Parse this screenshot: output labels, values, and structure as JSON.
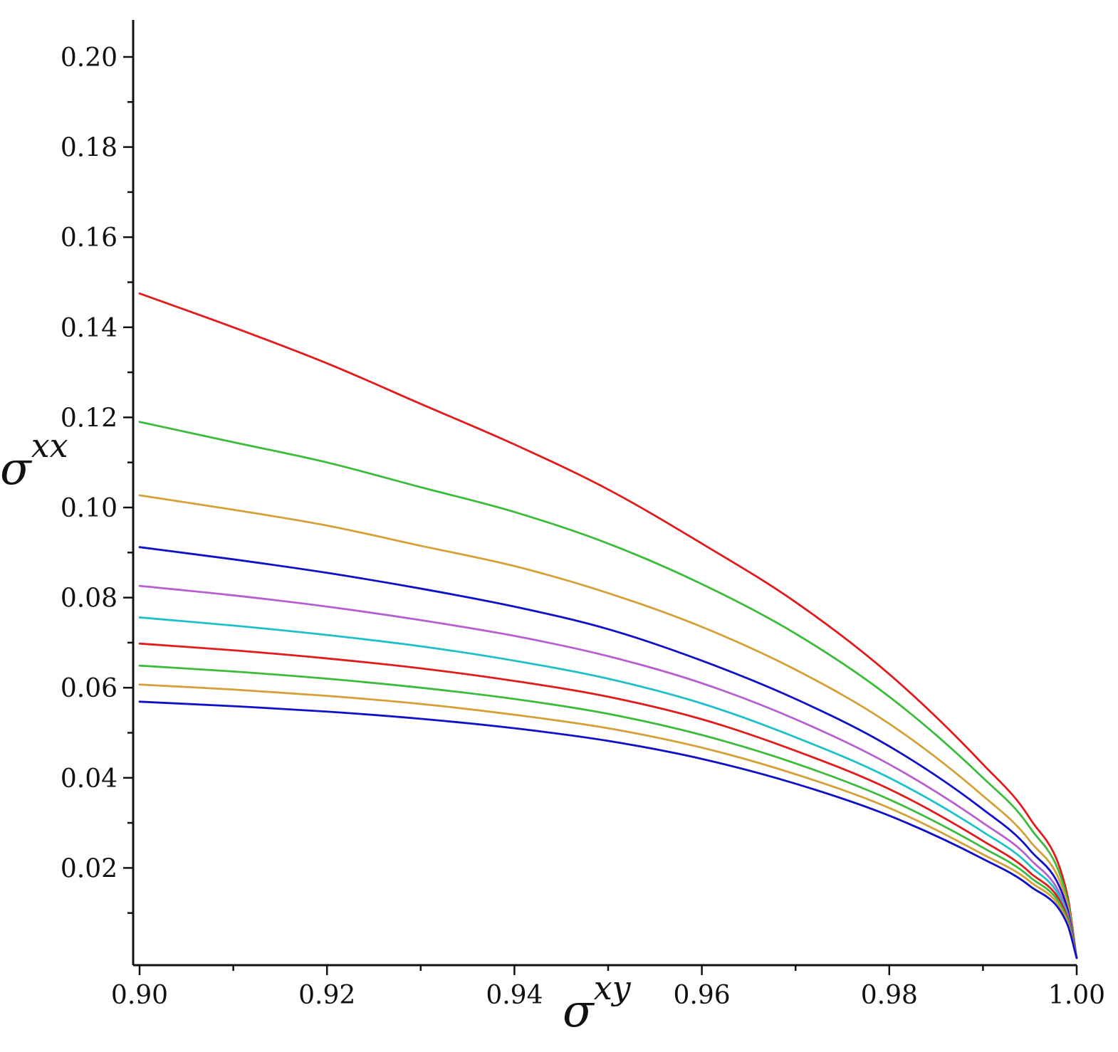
{
  "chart_data": {
    "type": "line",
    "xlabel": "σxy",
    "xlabel_base": "σ",
    "xlabel_sup": "xy",
    "ylabel": "σxx",
    "ylabel_base": "σ",
    "ylabel_sup": "xx",
    "xlim": [
      0.9,
      1.0
    ],
    "ylim": [
      0.0,
      0.208
    ],
    "x_ticks": [
      "0.90",
      "0.92",
      "0.94",
      "0.96",
      "0.98",
      "1.00"
    ],
    "y_ticks": [
      "0.02",
      "0.04",
      "0.06",
      "0.08",
      "0.10",
      "0.12",
      "0.14",
      "0.16",
      "0.18",
      "0.20"
    ],
    "grid": false,
    "legend": "none",
    "x": [
      0.9,
      0.91,
      0.92,
      0.93,
      0.94,
      0.95,
      0.96,
      0.97,
      0.98,
      0.99,
      0.995,
      0.999,
      1.0
    ],
    "series": [
      {
        "color": "#e31a1c",
        "values": [
          0.1475,
          0.14,
          0.132,
          0.123,
          0.114,
          0.104,
          0.092,
          0.079,
          0.063,
          0.043,
          0.031,
          0.014,
          0.0
        ]
      },
      {
        "color": "#3cbb3c",
        "values": [
          0.119,
          0.1145,
          0.11,
          0.1045,
          0.099,
          0.092,
          0.083,
          0.072,
          0.058,
          0.04,
          0.029,
          0.013,
          0.0
        ]
      },
      {
        "color": "#d4a038",
        "values": [
          0.1027,
          0.0995,
          0.096,
          0.0915,
          0.087,
          0.081,
          0.0735,
          0.064,
          0.052,
          0.036,
          0.026,
          0.012,
          0.0
        ]
      },
      {
        "color": "#1010c8",
        "values": [
          0.0912,
          0.0885,
          0.0855,
          0.082,
          0.078,
          0.073,
          0.066,
          0.0575,
          0.047,
          0.033,
          0.024,
          0.011,
          0.0
        ]
      },
      {
        "color": "#b660d0",
        "values": [
          0.0826,
          0.0805,
          0.078,
          0.075,
          0.0715,
          0.067,
          0.061,
          0.053,
          0.043,
          0.03,
          0.022,
          0.01,
          0.0
        ]
      },
      {
        "color": "#20c0c8",
        "values": [
          0.0756,
          0.0738,
          0.0717,
          0.0692,
          0.066,
          0.062,
          0.0565,
          0.049,
          0.04,
          0.028,
          0.0205,
          0.0095,
          0.0
        ]
      },
      {
        "color": "#e31a1c",
        "values": [
          0.0698,
          0.0683,
          0.0665,
          0.0643,
          0.0615,
          0.058,
          0.053,
          0.046,
          0.0375,
          0.026,
          0.019,
          0.009,
          0.0
        ]
      },
      {
        "color": "#3cbb3c",
        "values": [
          0.0649,
          0.0636,
          0.062,
          0.06,
          0.0575,
          0.0542,
          0.0495,
          0.0432,
          0.0352,
          0.0245,
          0.018,
          0.0085,
          0.0
        ]
      },
      {
        "color": "#d4a038",
        "values": [
          0.0607,
          0.0596,
          0.0582,
          0.0564,
          0.054,
          0.051,
          0.0467,
          0.0408,
          0.0333,
          0.023,
          0.017,
          0.008,
          0.0
        ]
      },
      {
        "color": "#1010c8",
        "values": [
          0.0569,
          0.0559,
          0.0547,
          0.0531,
          0.051,
          0.0482,
          0.0442,
          0.0387,
          0.0316,
          0.022,
          0.016,
          0.0075,
          0.0
        ]
      }
    ]
  }
}
